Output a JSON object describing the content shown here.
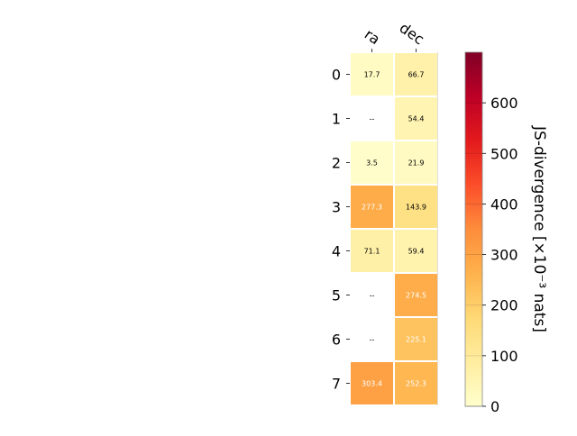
{
  "chart_data": {
    "type": "heatmap",
    "columns": [
      "ra",
      "dec"
    ],
    "rows": [
      "0",
      "1",
      "2",
      "3",
      "4",
      "5",
      "6",
      "7"
    ],
    "values": [
      [
        17.7,
        66.7
      ],
      [
        null,
        54.4
      ],
      [
        3.5,
        21.9
      ],
      [
        277.3,
        143.9
      ],
      [
        71.1,
        59.4
      ],
      [
        null,
        274.5
      ],
      [
        null,
        225.1
      ],
      [
        303.4,
        252.3
      ]
    ],
    "cell_labels": [
      [
        "17.7",
        "66.7"
      ],
      [
        "--",
        "54.4"
      ],
      [
        "3.5",
        "21.9"
      ],
      [
        "277.3",
        "143.9"
      ],
      [
        "71.1",
        "59.4"
      ],
      [
        "--",
        "274.5"
      ],
      [
        "--",
        "225.1"
      ],
      [
        "303.4",
        "252.3"
      ]
    ],
    "colorbar": {
      "label": "JS-divergence [×10⁻³ nats]",
      "min": 0,
      "max": 700,
      "ticks": [
        0,
        100,
        200,
        300,
        400,
        500,
        600
      ],
      "colormap": "YlOrRd",
      "colors": [
        "#ffffcc",
        "#ffeda0",
        "#fed976",
        "#feb24c",
        "#fd8d3c",
        "#fc4e2a",
        "#e31a1c",
        "#bd0026",
        "#800026"
      ]
    }
  }
}
